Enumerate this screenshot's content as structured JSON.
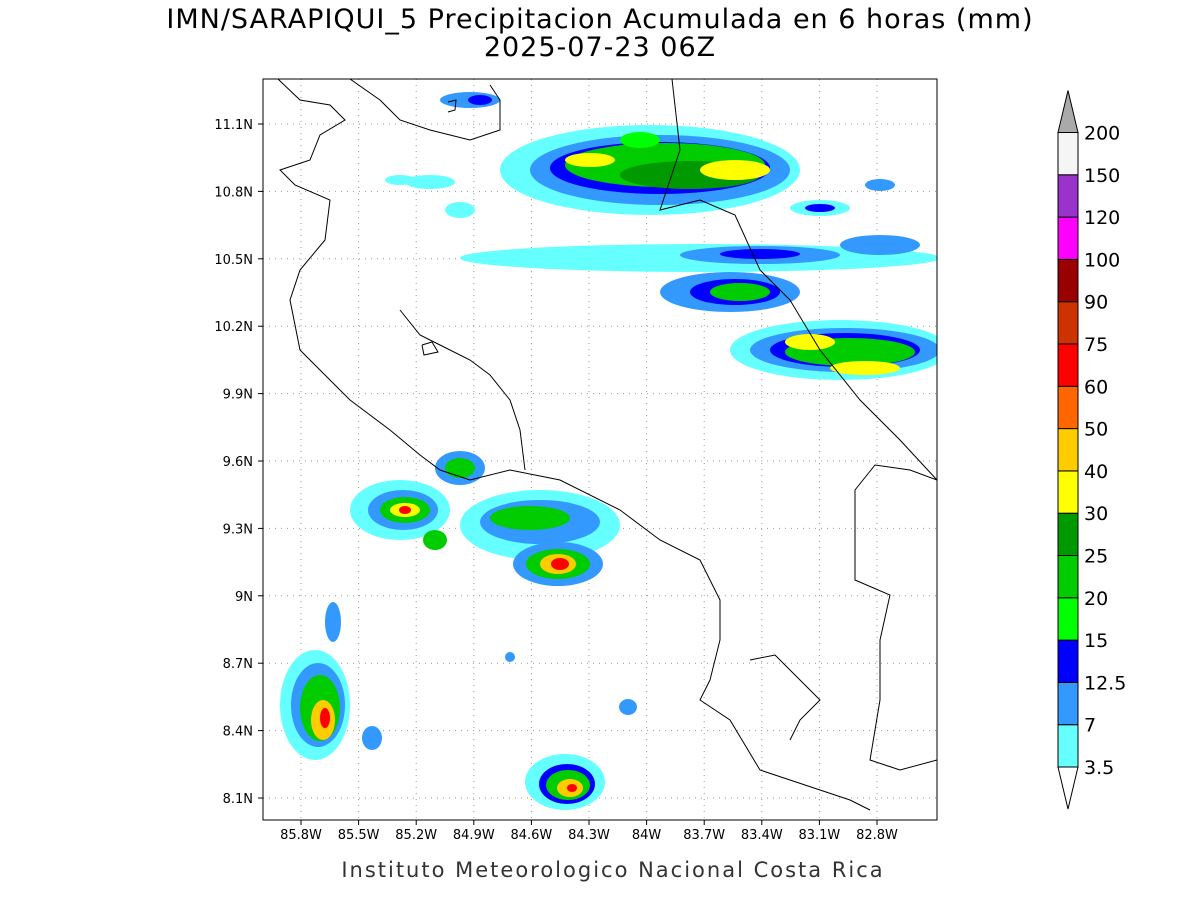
{
  "map": {
    "title": "IMN/SARAPIQUI_5 Precipitacion Acumulada en 6 horas (mm)",
    "subtitle": "2025-07-23 06Z",
    "lon_labels": [
      "85.8W",
      "85.5W",
      "85.2W",
      "84.9W",
      "84.6W",
      "84.3W",
      "84W",
      "83.7W",
      "83.4W",
      "83.1W",
      "82.8W"
    ],
    "lat_labels": [
      "11.1N",
      "10.8N",
      "10.5N",
      "10.2N",
      "9.9N",
      "9.6N",
      "9.3N",
      "9N",
      "8.7N",
      "8.4N",
      "8.1N"
    ],
    "colorbar": {
      "levels": [
        3.5,
        7,
        12.5,
        15,
        20,
        25,
        30,
        40,
        50,
        60,
        75,
        90,
        100,
        120,
        150,
        200
      ],
      "colors": [
        "#66ffff",
        "#3399ff",
        "#0000ff",
        "#00ff00",
        "#00cc00",
        "#009900",
        "#ffff00",
        "#ffcc00",
        "#ff6600",
        "#ff0000",
        "#cc3300",
        "#990000",
        "#ff00ff",
        "#9933cc",
        "#f5f5f5"
      ],
      "below_color": "#ffffff",
      "above_color": "#aaaaaa"
    },
    "footer": "Instituto Meteorologico Nacional Costa Rica"
  }
}
